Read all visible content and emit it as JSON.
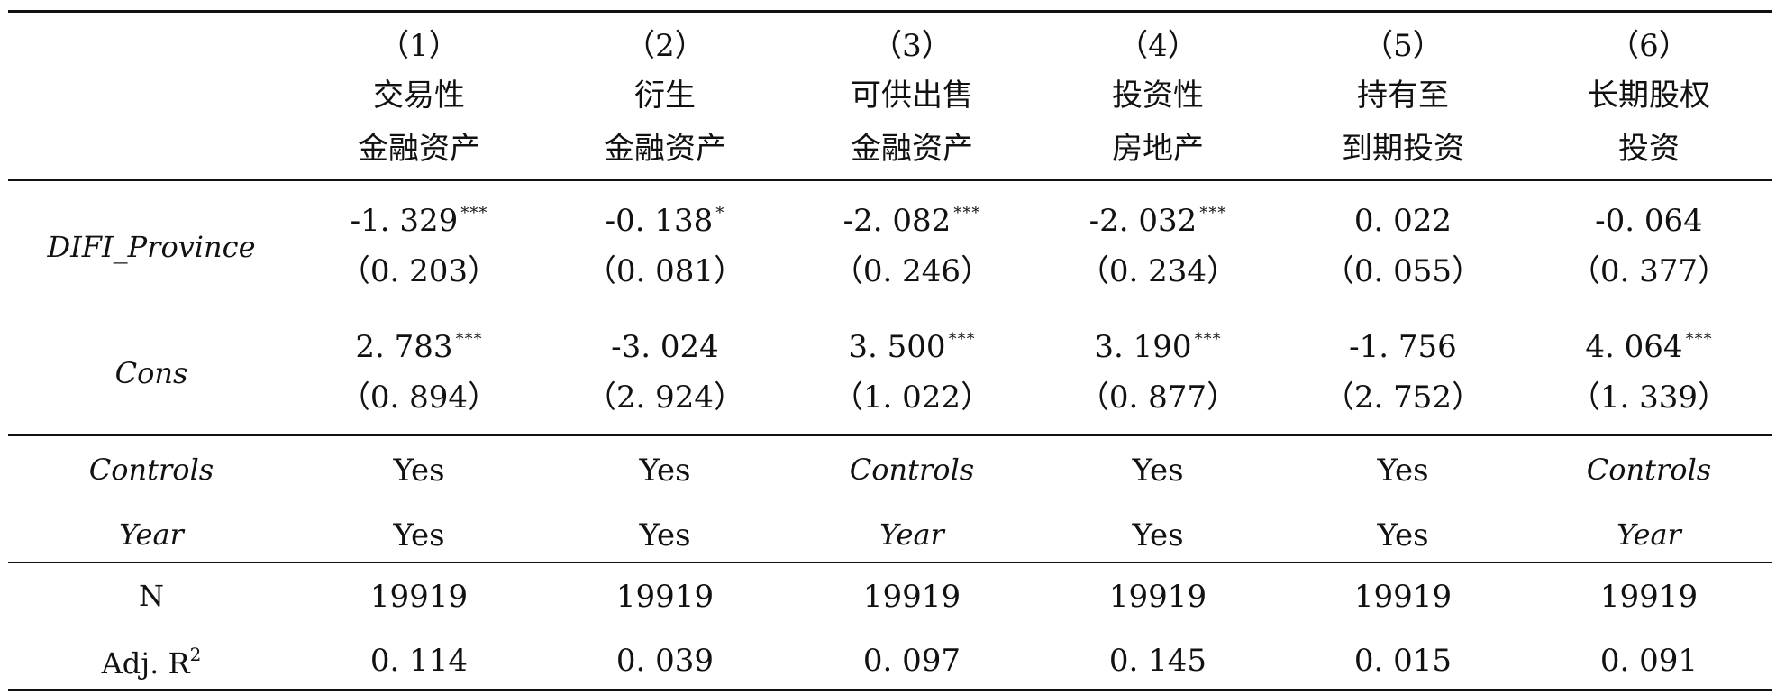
{
  "columns": [
    {
      "num": "（1）",
      "line1": "交易性",
      "line2": "金融资产"
    },
    {
      "num": "（2）",
      "line1": "衍生",
      "line2": "金融资产"
    },
    {
      "num": "（3）",
      "line1": "可供出售",
      "line2": "金融资产"
    },
    {
      "num": "（4）",
      "line1": "投资性",
      "line2": "房地产"
    },
    {
      "num": "（5）",
      "line1": "持有至",
      "line2": "到期投资"
    },
    {
      "num": "（6）",
      "line1": "长期股权",
      "line2": "投资"
    }
  ],
  "rows": {
    "difi": {
      "label": "DIFI_Province",
      "coef": [
        "-1. 329",
        "-0. 138",
        "-2. 082",
        "-2. 032",
        "0. 022",
        "-0. 064"
      ],
      "sig": [
        "***",
        "*",
        "***",
        "***",
        "",
        ""
      ],
      "se": [
        "（0. 203）",
        "（0. 081）",
        "（0. 246）",
        "（0. 234）",
        "（0. 055）",
        "（0. 377）"
      ]
    },
    "cons": {
      "label": "Cons",
      "coef": [
        "2. 783",
        "-3. 024",
        "3. 500",
        "3. 190",
        "-1. 756",
        "4. 064"
      ],
      "sig": [
        "***",
        "",
        "***",
        "***",
        "",
        "***"
      ],
      "se": [
        "（0. 894）",
        "（2. 924）",
        "（1. 022）",
        "（0. 877）",
        "（2. 752）",
        "（1. 339）"
      ]
    },
    "controls": {
      "label": "Controls",
      "values": [
        "Yes",
        "Yes",
        "Controls",
        "Yes",
        "Yes",
        "Controls"
      ]
    },
    "year": {
      "label": "Year",
      "values": [
        "Yes",
        "Yes",
        "Year",
        "Yes",
        "Yes",
        "Year"
      ]
    },
    "n": {
      "label": "N",
      "values": [
        "19919",
        "19919",
        "19919",
        "19919",
        "19919",
        "19919"
      ]
    },
    "adjr2": {
      "label": "Adj. R",
      "label_sup": "2",
      "values": [
        "0. 114",
        "0. 039",
        "0. 097",
        "0. 145",
        "0. 015",
        "0. 091"
      ]
    }
  }
}
